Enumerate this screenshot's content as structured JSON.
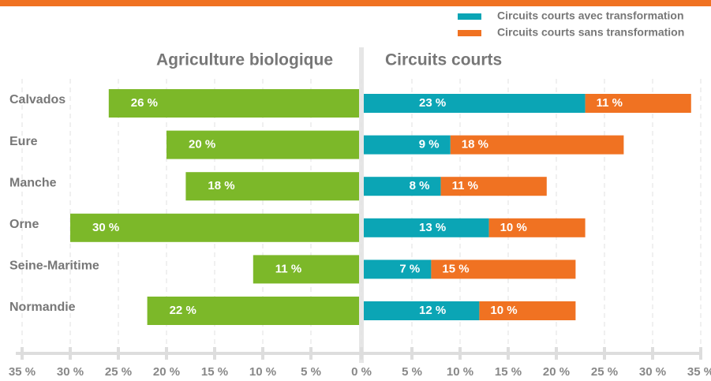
{
  "chart_data": {
    "type": "butterfly",
    "left_title": "Agriculture biologique",
    "right_title": "Circuits courts",
    "categories": [
      "Calvados",
      "Eure",
      "Manche",
      "Orne",
      "Seine-Maritime",
      "Normandie"
    ],
    "left_series": {
      "color": "#7cb829",
      "values": [
        26,
        20,
        18,
        30,
        11,
        22
      ],
      "value_labels": [
        "26 %",
        "20 %",
        "18 %",
        "30 %",
        "11 %",
        "22 %"
      ]
    },
    "series": [
      {
        "name": "Circuits courts avec transformation",
        "color": "#0ba5b5",
        "values": [
          23,
          9,
          8,
          13,
          7,
          12
        ],
        "value_labels": [
          "23 %",
          "9 %",
          "8 %",
          "13 %",
          "7 %",
          "12 %"
        ]
      },
      {
        "name": "Circuits courts sans transformation",
        "color": "#f07222",
        "values": [
          11,
          18,
          11,
          10,
          15,
          10
        ],
        "value_labels": [
          "11 %",
          "18 %",
          "11 %",
          "10 %",
          "15 %",
          "10 %"
        ]
      }
    ],
    "left_xlim": [
      35,
      0
    ],
    "right_xlim": [
      0,
      35
    ],
    "left_xticks": [
      {
        "value": 35,
        "label": "35 %"
      },
      {
        "value": 30,
        "label": "30 %"
      },
      {
        "value": 25,
        "label": "25 %"
      },
      {
        "value": 20,
        "label": "20 %"
      },
      {
        "value": 15,
        "label": "15 %"
      },
      {
        "value": 10,
        "label": "10 %"
      },
      {
        "value": 5,
        "label": "5 %"
      }
    ],
    "right_xticks": [
      {
        "value": 0,
        "label": "0 %"
      },
      {
        "value": 5,
        "label": "5 %"
      },
      {
        "value": 10,
        "label": "10 %"
      },
      {
        "value": 15,
        "label": "15 %"
      },
      {
        "value": 20,
        "label": "20 %"
      },
      {
        "value": 25,
        "label": "25 %"
      },
      {
        "value": 30,
        "label": "30 %"
      },
      {
        "value": 35,
        "label": "35 %"
      }
    ],
    "grid": true
  }
}
